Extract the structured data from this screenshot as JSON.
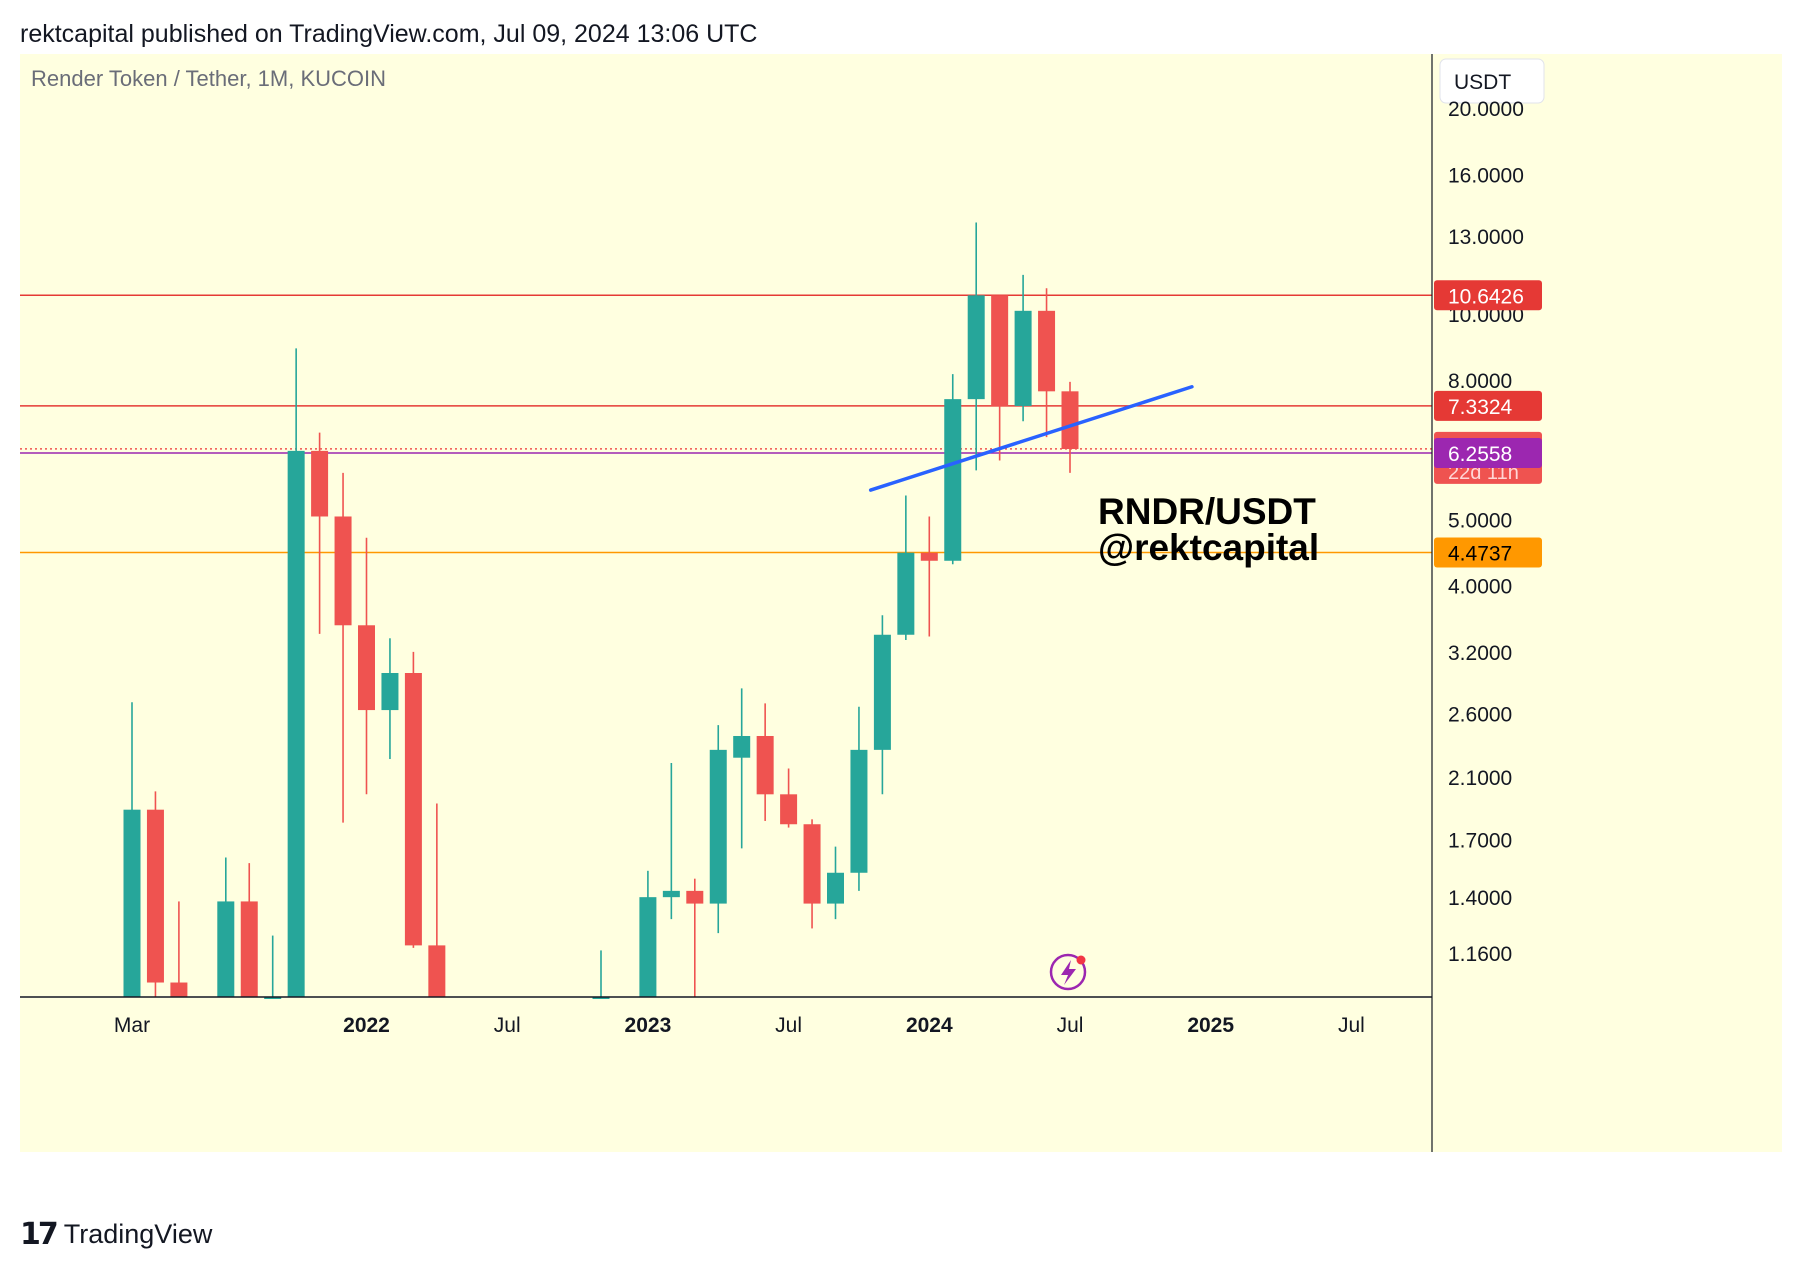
{
  "header": {
    "text": "rektcapital published on TradingView.com, Jul 09, 2024 13:06 UTC"
  },
  "footer": {
    "logo_icon": "tradingview-logo-icon",
    "brand": "TradingView"
  },
  "colors": {
    "background": "#ffffe0",
    "up": "#26a69a",
    "down": "#ef5350",
    "resistance": "#e53935",
    "support": "#ff9800",
    "trendline": "#2962ff",
    "current": "#9c27b0"
  },
  "chart_data": {
    "type": "candlestick",
    "title": "Render Token / Tether, 1M, KUCOIN",
    "currency_label": "USDT",
    "y_scale": "log",
    "ylim": [
      1.0,
      24.0
    ],
    "y_ticks": [
      "20.0000",
      "16.0000",
      "13.0000",
      "10.0000",
      "8.0000",
      "5.0000",
      "4.0000",
      "3.2000",
      "2.6000",
      "2.1000",
      "1.7000",
      "1.4000",
      "1.1600"
    ],
    "x_ticks": [
      {
        "label": "Mar",
        "index": 2,
        "bold": false
      },
      {
        "label": "2022",
        "index": 12,
        "bold": true
      },
      {
        "label": "Jul",
        "index": 18,
        "bold": false
      },
      {
        "label": "2023",
        "index": 24,
        "bold": true
      },
      {
        "label": "Jul",
        "index": 30,
        "bold": false
      },
      {
        "label": "2024",
        "index": 36,
        "bold": true
      },
      {
        "label": "Jul",
        "index": 42,
        "bold": false
      },
      {
        "label": "2025",
        "index": 48,
        "bold": true
      },
      {
        "label": "Jul",
        "index": 54,
        "bold": false
      }
    ],
    "candles": [
      {
        "t": "2021-03",
        "o": 1.0,
        "h": 2.7,
        "l": 1.0,
        "c": 1.88
      },
      {
        "t": "2021-04",
        "o": 1.88,
        "h": 2.0,
        "l": 1.0,
        "c": 1.05
      },
      {
        "t": "2021-05",
        "o": 1.05,
        "h": 1.38,
        "l": 1.0,
        "c": 1.0
      },
      {
        "t": "2021-06",
        "o": null,
        "h": null,
        "l": null,
        "c": null
      },
      {
        "t": "2021-07",
        "o": 1.0,
        "h": 1.6,
        "l": 1.0,
        "c": 1.38
      },
      {
        "t": "2021-08",
        "o": 1.38,
        "h": 1.57,
        "l": 1.0,
        "c": 1.0
      },
      {
        "t": "2021-09",
        "o": 1.0,
        "h": 1.23,
        "l": 1.0,
        "c": 1.0
      },
      {
        "t": "2021-10",
        "o": 1.0,
        "h": 8.9,
        "l": 1.0,
        "c": 6.3
      },
      {
        "t": "2021-11",
        "o": 6.3,
        "h": 6.7,
        "l": 3.4,
        "c": 5.05
      },
      {
        "t": "2021-12",
        "o": 5.05,
        "h": 5.85,
        "l": 1.8,
        "c": 3.5
      },
      {
        "t": "2022-01",
        "o": 3.5,
        "h": 4.7,
        "l": 1.98,
        "c": 2.63
      },
      {
        "t": "2022-02",
        "o": 2.63,
        "h": 3.35,
        "l": 2.23,
        "c": 2.98
      },
      {
        "t": "2022-03",
        "o": 2.98,
        "h": 3.2,
        "l": 1.18,
        "c": 1.19
      },
      {
        "t": "2022-04",
        "o": 1.19,
        "h": 1.92,
        "l": 1.0,
        "c": 1.0
      },
      {
        "t": "2022-05",
        "o": null,
        "h": null,
        "l": null,
        "c": null
      },
      {
        "t": "2022-06",
        "o": null,
        "h": null,
        "l": null,
        "c": null
      },
      {
        "t": "2022-07",
        "o": null,
        "h": null,
        "l": null,
        "c": null
      },
      {
        "t": "2022-08",
        "o": null,
        "h": null,
        "l": null,
        "c": null
      },
      {
        "t": "2022-09",
        "o": null,
        "h": null,
        "l": null,
        "c": null
      },
      {
        "t": "2022-10",
        "o": null,
        "h": null,
        "l": null,
        "c": null
      },
      {
        "t": "2022-11",
        "o": 1.0,
        "h": 1.17,
        "l": 1.0,
        "c": 1.0
      },
      {
        "t": "2022-12",
        "o": null,
        "h": null,
        "l": null,
        "c": null
      },
      {
        "t": "2023-01",
        "o": 1.0,
        "h": 1.53,
        "l": 1.0,
        "c": 1.4
      },
      {
        "t": "2023-02",
        "o": 1.4,
        "h": 2.2,
        "l": 1.3,
        "c": 1.43
      },
      {
        "t": "2023-03",
        "o": 1.43,
        "h": 1.49,
        "l": 1.0,
        "c": 1.37
      },
      {
        "t": "2023-04",
        "o": 1.37,
        "h": 2.5,
        "l": 1.24,
        "c": 2.3
      },
      {
        "t": "2023-05",
        "o": 2.24,
        "h": 2.83,
        "l": 1.65,
        "c": 2.41
      },
      {
        "t": "2023-06",
        "o": 2.41,
        "h": 2.69,
        "l": 1.81,
        "c": 1.98
      },
      {
        "t": "2023-07",
        "o": 1.98,
        "h": 2.16,
        "l": 1.77,
        "c": 1.79
      },
      {
        "t": "2023-08",
        "o": 1.79,
        "h": 1.82,
        "l": 1.26,
        "c": 1.37
      },
      {
        "t": "2023-09",
        "o": 1.37,
        "h": 1.66,
        "l": 1.3,
        "c": 1.52
      },
      {
        "t": "2023-10",
        "o": 1.52,
        "h": 2.66,
        "l": 1.43,
        "c": 2.3
      },
      {
        "t": "2023-11",
        "o": 2.3,
        "h": 3.62,
        "l": 1.98,
        "c": 3.39
      },
      {
        "t": "2023-12",
        "o": 3.39,
        "h": 5.42,
        "l": 3.33,
        "c": 4.47
      },
      {
        "t": "2024-01",
        "o": 4.47,
        "h": 5.05,
        "l": 3.37,
        "c": 4.35
      },
      {
        "t": "2024-02",
        "o": 4.35,
        "h": 8.16,
        "l": 4.3,
        "c": 7.5
      },
      {
        "t": "2024-03",
        "o": 7.5,
        "h": 13.6,
        "l": 5.9,
        "c": 10.64
      },
      {
        "t": "2024-04",
        "o": 10.64,
        "h": 10.64,
        "l": 6.1,
        "c": 7.33
      },
      {
        "t": "2024-05",
        "o": 7.33,
        "h": 11.4,
        "l": 6.96,
        "c": 10.1
      },
      {
        "t": "2024-06",
        "o": 10.1,
        "h": 10.9,
        "l": 6.6,
        "c": 7.7
      },
      {
        "t": "2024-07",
        "o": 7.7,
        "h": 7.95,
        "l": 5.85,
        "c": 6.34
      }
    ],
    "horizontal_lines": [
      {
        "price": 10.6426,
        "label": "10.6426",
        "color": "#e53935"
      },
      {
        "price": 7.3324,
        "label": "7.3324",
        "color": "#e53935"
      },
      {
        "price": 4.4737,
        "label": "4.4737",
        "color": "#ff9800"
      }
    ],
    "current_price": {
      "value": 6.3435,
      "label": "6.3435",
      "countdown": "22d 11h"
    },
    "purple_level": {
      "value": 6.2558,
      "label": "6.2558"
    },
    "trendline": {
      "start": {
        "index": 33.5,
        "price": 5.52
      },
      "end": {
        "index": 47.2,
        "price": 7.82
      }
    },
    "annotation": {
      "line1": "RNDR/USDT",
      "line2": "@rektcapital"
    },
    "watermark_icon": "lightning-bolt-icon"
  }
}
